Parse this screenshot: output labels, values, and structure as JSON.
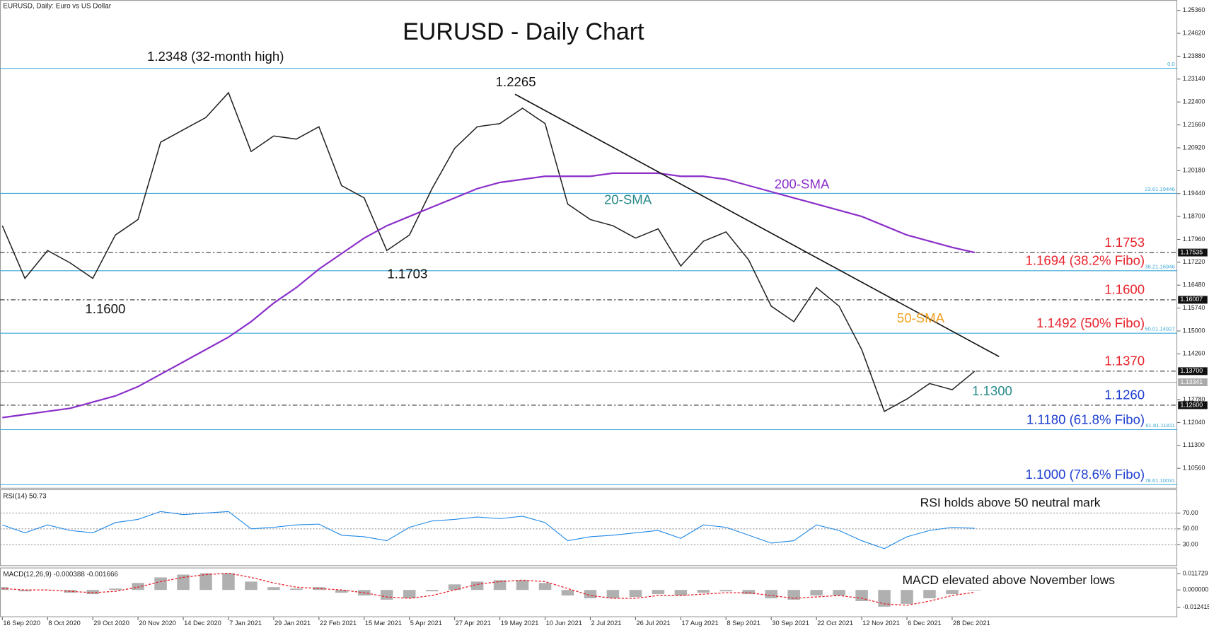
{
  "chart_data": [
    {
      "type": "line",
      "header": "EURUSD, Daily:  Euro vs US Dollar",
      "title": "EURUSD - Daily Chart",
      "categories": [
        "16 Sep 2020",
        null,
        "8 Oct 2020",
        null,
        "29 Oct 2020",
        null,
        "20 Nov 2020",
        null,
        "14 Dec 2020",
        null,
        "7 Jan 2021",
        null,
        "29 Jan 2021",
        null,
        "22 Feb 2021",
        null,
        "15 Mar 2021",
        null,
        "5 Apr 2021",
        null,
        "27 Apr 2021",
        null,
        "19 May 2021",
        null,
        "10 Jun 2021",
        null,
        "2 Jul 2021",
        null,
        "26 Jul 2021",
        null,
        "17 Aug 2021",
        null,
        "8 Sep 2021",
        null,
        "30 Sep 2021",
        null,
        "22 Oct 2021",
        null,
        "12 Nov 2021",
        null,
        "6 Dec 2021",
        null,
        "28 Dec 2021",
        null
      ],
      "series": [
        {
          "name": "Price",
          "color": "#222222",
          "values": [
            1.184,
            1.167,
            1.176,
            1.172,
            1.167,
            1.181,
            1.186,
            1.211,
            1.215,
            1.219,
            1.227,
            1.208,
            1.213,
            1.212,
            1.216,
            1.197,
            1.193,
            1.176,
            1.181,
            1.196,
            1.209,
            1.216,
            1.217,
            1.222,
            1.217,
            1.191,
            1.186,
            1.184,
            1.18,
            1.183,
            1.171,
            1.179,
            1.182,
            1.173,
            1.158,
            1.153,
            1.164,
            1.158,
            1.144,
            1.124,
            1.128,
            1.133,
            1.131,
            1.137
          ]
        },
        {
          "name": "200-SMA",
          "color": "#8b2fc9",
          "values": [
            1.122,
            1.123,
            1.124,
            1.125,
            1.127,
            1.129,
            1.132,
            1.136,
            1.14,
            1.144,
            1.148,
            1.153,
            1.159,
            1.164,
            1.17,
            1.175,
            1.18,
            1.184,
            1.187,
            1.19,
            1.193,
            1.196,
            1.198,
            1.199,
            1.2,
            1.2,
            1.2,
            1.201,
            1.201,
            1.201,
            1.2,
            1.2,
            1.199,
            1.197,
            1.195,
            1.193,
            1.191,
            1.189,
            1.187,
            1.184,
            1.181,
            1.179,
            1.177,
            1.17535
          ]
        }
      ],
      "trendline": [
        1.2265,
        1.1417
      ],
      "ylim": [
        1.0993,
        1.2567
      ],
      "yticks": [
        {
          "value": 1.2536,
          "label": "1.25360"
        },
        {
          "value": 1.2462,
          "label": "1.24620"
        },
        {
          "value": 1.2388,
          "label": "1.23880"
        },
        {
          "value": 1.2314,
          "label": "1.23140"
        },
        {
          "value": 1.224,
          "label": "1.22400"
        },
        {
          "value": 1.2166,
          "label": "1.21660"
        },
        {
          "value": 1.2092,
          "label": "1.20920"
        },
        {
          "value": 1.2018,
          "label": "1.20180"
        },
        {
          "value": 1.1944,
          "label": "1.19440"
        },
        {
          "value": 1.187,
          "label": "1.18700"
        },
        {
          "value": 1.1796,
          "label": "1.17960"
        },
        {
          "value": 1.1722,
          "label": "1.17220"
        },
        {
          "value": 1.1648,
          "label": "1.16480"
        },
        {
          "value": 1.1574,
          "label": "1.15740"
        },
        {
          "value": 1.15,
          "label": "1.15000"
        },
        {
          "value": 1.1426,
          "label": "1.14260"
        },
        {
          "value": 1.1278,
          "label": "1.12780"
        },
        {
          "value": 1.1204,
          "label": "1.12040"
        },
        {
          "value": 1.113,
          "label": "1.11300"
        },
        {
          "value": 1.1056,
          "label": "1.10560"
        }
      ],
      "levels": [
        {
          "value": 1.23488,
          "style": "solid",
          "color": "#3fa9d9",
          "tag": "0.0"
        },
        {
          "value": 1.19446,
          "style": "solid",
          "color": "#3fa9d9",
          "tag": "23.61.19446"
        },
        {
          "value": 1.17535,
          "style": "dash",
          "color": "#333333",
          "axis_label": "1.17535",
          "note": "1.1753",
          "note_color": "#e8232c"
        },
        {
          "value": 1.16946,
          "style": "solid",
          "color": "#3fa9d9",
          "tag": "38.21.16946",
          "note": "1.1694 (38.2% Fibo)",
          "note_color": "#e8232c"
        },
        {
          "value": 1.16007,
          "style": "dash",
          "color": "#333333",
          "axis_label": "1.16007",
          "note": "1.1600",
          "note_color": "#e8232c"
        },
        {
          "value": 1.14927,
          "style": "solid",
          "color": "#3fa9d9",
          "tag": "50.01.14927",
          "note": "1.1492 (50% Fibo)",
          "note_color": "#e8232c"
        },
        {
          "value": 1.137,
          "style": "dash",
          "color": "#333333",
          "axis_label": "1.13700",
          "note": "1.1370",
          "note_color": "#e8232c"
        },
        {
          "value": 1.13341,
          "style": "solid",
          "color": "#aaaaaa",
          "axis_label": "1.13341"
        },
        {
          "value": 1.126,
          "style": "dash",
          "color": "#333333",
          "axis_label": "1.12600",
          "note": "1.1260",
          "note_color": "#1f3fd1"
        },
        {
          "value": 1.11811,
          "style": "solid",
          "color": "#3fa9d9",
          "tag": "61.81.11811",
          "note": "1.1180 (61.8% Fibo)",
          "note_color": "#1f3fd1"
        },
        {
          "value": 1.10031,
          "style": "solid",
          "color": "#3fa9d9",
          "tag": "78.61.10031",
          "note": "1.1000 (78.6% Fibo)",
          "note_color": "#1f3fd1"
        }
      ],
      "annotations": [
        {
          "text": "1.2348 (32-month high)",
          "color": "#111111"
        },
        {
          "text": "1.2265",
          "color": "#111111"
        },
        {
          "text": "1.1703",
          "color": "#111111"
        },
        {
          "text": "1.1600",
          "color": "#111111"
        },
        {
          "text": "1.1300",
          "color": "#2a8a8a"
        },
        {
          "text": "200-SMA",
          "color": "#8b2fc9"
        },
        {
          "text": "20-SMA",
          "color": "#2a8a8a"
        },
        {
          "text": "50-SMA",
          "color": "#f0a020"
        }
      ]
    },
    {
      "type": "line",
      "title": "RSI(14) 50.73",
      "annotation": "RSI holds above 50 neutral mark",
      "series": [
        {
          "name": "RSI",
          "color": "#1e88e5",
          "values": [
            55,
            45,
            55,
            48,
            45,
            58,
            62,
            72,
            68,
            70,
            72,
            50,
            52,
            55,
            56,
            42,
            40,
            35,
            52,
            60,
            62,
            65,
            63,
            66,
            58,
            35,
            40,
            42,
            45,
            48,
            38,
            55,
            52,
            42,
            32,
            35,
            55,
            48,
            35,
            25,
            40,
            48,
            52,
            50.73
          ]
        }
      ],
      "ylim": [
        3,
        99
      ],
      "yticks": [
        {
          "value": 70,
          "label": "70.00"
        },
        {
          "value": 50,
          "label": "50.00"
        },
        {
          "value": 30,
          "label": "30.00"
        }
      ]
    },
    {
      "type": "macd",
      "title": "MACD(12,26,9) -0.000388 -0.001666",
      "annotation": "MACD  elevated above November lows",
      "series": [
        {
          "name": "MACD",
          "color": "#b0b0b0",
          "values": [
            0.002,
            -0.001,
            0.0,
            -0.002,
            -0.003,
            0.001,
            0.005,
            0.009,
            0.011,
            0.012,
            0.012,
            0.006,
            0.002,
            0.001,
            0.002,
            -0.002,
            -0.004,
            -0.007,
            -0.006,
            -0.001,
            0.004,
            0.006,
            0.007,
            0.007,
            0.005,
            -0.004,
            -0.006,
            -0.006,
            -0.005,
            -0.003,
            -0.004,
            -0.002,
            -0.001,
            -0.003,
            -0.006,
            -0.007,
            -0.004,
            -0.004,
            -0.008,
            -0.012,
            -0.01,
            -0.006,
            -0.003,
            -0.000388
          ]
        },
        {
          "name": "Signal",
          "color": "#e8232c",
          "values": [
            0.001,
            0.0,
            0.0,
            -0.001,
            -0.002,
            -0.001,
            0.002,
            0.006,
            0.009,
            0.011,
            0.012,
            0.009,
            0.005,
            0.002,
            0.001,
            0.0,
            -0.002,
            -0.005,
            -0.006,
            -0.004,
            0.0,
            0.004,
            0.006,
            0.007,
            0.006,
            0.001,
            -0.004,
            -0.006,
            -0.006,
            -0.004,
            -0.004,
            -0.003,
            -0.002,
            -0.002,
            -0.004,
            -0.006,
            -0.005,
            -0.004,
            -0.006,
            -0.01,
            -0.011,
            -0.008,
            -0.004,
            -0.001666
          ]
        }
      ],
      "ylim": [
        -0.0195,
        0.0155
      ],
      "yticks": [
        {
          "value": 0.011729,
          "label": "0.011729"
        },
        {
          "value": 0,
          "label": "0.000000"
        },
        {
          "value": -0.012415,
          "label": "-0.012415"
        }
      ]
    }
  ]
}
